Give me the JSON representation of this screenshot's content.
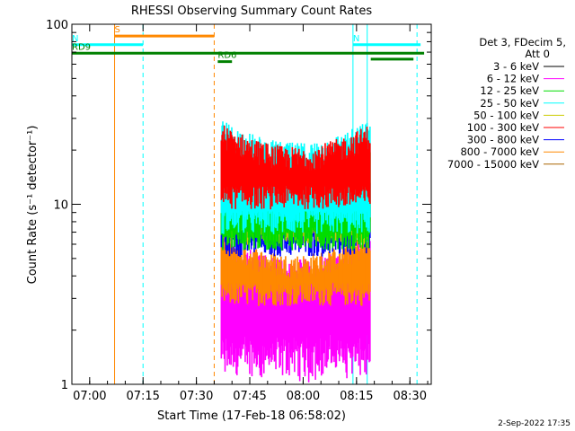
{
  "chart_data": {
    "type": "line",
    "title": "RHESSI Observing Summary Count Rates",
    "xlabel": "Start Time (17-Feb-18 06:58:02)",
    "ylabel": "Count Rate (s⁻¹ detector⁻¹)",
    "y_scale": "log",
    "ylim": [
      1,
      100
    ],
    "xlim": [
      "06:55",
      "08:36"
    ],
    "x_ticks": [
      "07:00",
      "07:15",
      "07:30",
      "07:45",
      "08:00",
      "08:15",
      "08:30"
    ],
    "y_ticks": [
      "1",
      "10",
      "100"
    ],
    "legend_header": [
      "Det 3, FDecim 5,",
      "Att 0"
    ],
    "legend_placement": "right",
    "series": [
      {
        "name": "3 - 6 keV",
        "color": "#000000",
        "values": []
      },
      {
        "name": "6 - 12 keV",
        "color": "#ff00ff",
        "range": [
          1.3,
          4.5
        ]
      },
      {
        "name": "12 - 25 keV",
        "color": "#00dd00",
        "range": [
          6.5,
          16
        ]
      },
      {
        "name": "25 - 50 keV",
        "color": "#00ffff",
        "range": [
          8,
          20
        ]
      },
      {
        "name": "50 - 100 keV",
        "color": "#cccc00",
        "range": [
          7,
          14
        ]
      },
      {
        "name": "100 - 300 keV",
        "color": "#ff0000",
        "range": [
          11,
          19
        ]
      },
      {
        "name": "300 - 800 keV",
        "color": "#0000ff",
        "range": [
          6,
          9.5
        ]
      },
      {
        "name": "800 - 7000 keV",
        "color": "#ff8800",
        "range": [
          3.2,
          4.8
        ]
      },
      {
        "name": "7000 - 15000 keV",
        "color": "#aa6600",
        "values": []
      }
    ],
    "data_window": [
      "07:37",
      "08:19"
    ],
    "flags": [
      {
        "label": "S",
        "color": "#ff8800",
        "start": "07:07",
        "end": "07:35",
        "y": 86
      },
      {
        "label": "N",
        "color": "#00ffff",
        "start": "06:55",
        "end": "07:15",
        "y": 77
      },
      {
        "label": "N",
        "color": "#00ffff",
        "start": "08:14",
        "end": "08:33",
        "y": 77
      },
      {
        "label": "RD9",
        "color": "#008000",
        "start": "06:55",
        "end": "08:34",
        "y": 69
      },
      {
        "label": "RD6",
        "color": "#008000",
        "start": "07:36",
        "end": "07:40",
        "y": 62
      }
    ],
    "vlines": [
      {
        "time": "07:07",
        "color": "#ff8800",
        "style": "solid"
      },
      {
        "time": "07:15",
        "color": "#00ffff",
        "style": "dashed"
      },
      {
        "time": "07:35",
        "color": "#ff8800",
        "style": "dashed"
      },
      {
        "time": "08:14",
        "color": "#00ffff",
        "style": "solid"
      },
      {
        "time": "08:18",
        "color": "#00ffff",
        "style": "solid"
      },
      {
        "time": "08:32",
        "color": "#00ffff",
        "style": "dashed"
      },
      {
        "time": "06:55",
        "color": "#00ffff",
        "style": "solid"
      }
    ]
  },
  "footer": {
    "date": "2-Sep-2022 17:35"
  }
}
